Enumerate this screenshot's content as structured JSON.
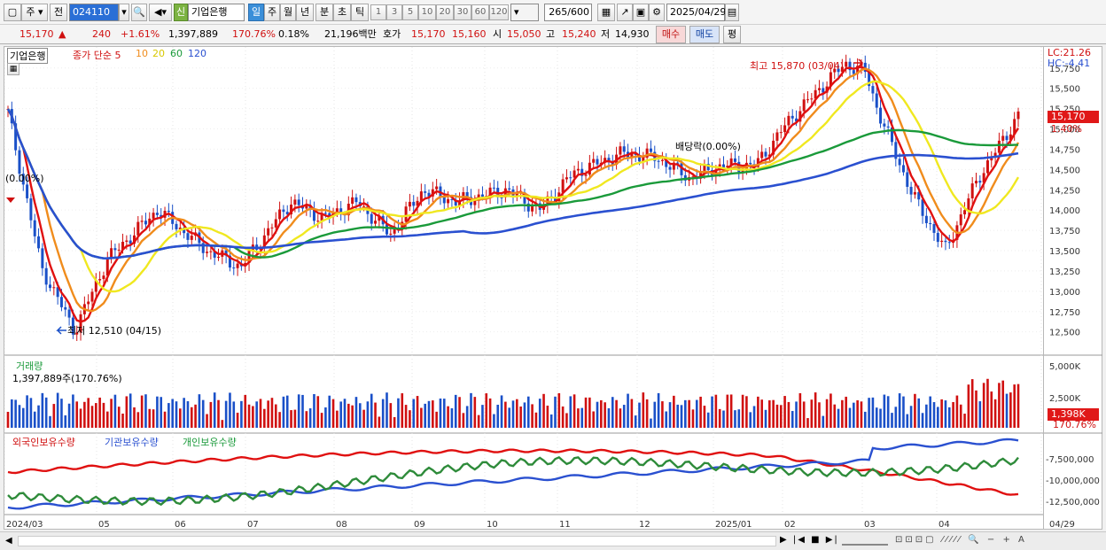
{
  "toolbar": {
    "market": "주",
    "prev_label": "전",
    "code": "024110",
    "credit_badge": "신",
    "stock_name": "기업은행",
    "periods": [
      "일",
      "주",
      "월",
      "년",
      "분",
      "초",
      "틱"
    ],
    "active_period": "일",
    "minutes": [
      "1",
      "3",
      "5",
      "10",
      "20",
      "30",
      "60",
      "120"
    ],
    "count": "265",
    "count_max": "/600",
    "date": "2025/04/29"
  },
  "quote": {
    "price": "15,170",
    "change": "240",
    "change_pct": "+1.61%",
    "volume": "1,397,889",
    "volume_ratio": "170.76%",
    "turnover": "0.18%",
    "amount": "21,196백만",
    "ask_label": "호가",
    "ask1": "15,170",
    "ask2": "15,160",
    "open_label": "시",
    "open": "15,050",
    "high_label": "고",
    "high": "15,240",
    "low_label": "저",
    "low": "14,930",
    "buy_label": "매수",
    "sell_label": "매도",
    "eval_label": "평"
  },
  "price_panel": {
    "name": "기업은행",
    "ma_title": "종가 단순 5",
    "ma_periods": [
      "10",
      "20",
      "60",
      "120"
    ],
    "lc": "LC:21.26",
    "hc": "HC:-4.41",
    "last_price": "15,170",
    "last_pct": "1.40%",
    "high_note": "최고 15,870 (03/04)",
    "low_note": "최저 12,510 (04/15)",
    "ex_dividend": "배당락(0.00%)",
    "left_note": "(0.00%)",
    "y_ticks": [
      "15,750",
      "15,500",
      "15,250",
      "15,000",
      "14,750",
      "14,500",
      "14,250",
      "14,000",
      "13,750",
      "13,500",
      "13,250",
      "13,000",
      "12,750",
      "12,500"
    ]
  },
  "volume_panel": {
    "title": "거래량",
    "value_note": "1,397,889주(170.76%)",
    "y_ticks": [
      "5,000K",
      "2,500K"
    ],
    "last": "1,398K",
    "last_pct": "170.76%"
  },
  "holding_panel": {
    "legend": [
      "외국인보유수량",
      "기관보유수량",
      "개인보유수량"
    ],
    "y_ticks": [
      "-7,500,000",
      "-10,000,000",
      "-12,500,000"
    ]
  },
  "x_ticks": [
    "2024/03",
    "05",
    "06",
    "07",
    "08",
    "09",
    "10",
    "11",
    "12",
    "2025/01",
    "02",
    "03",
    "04",
    "04/29"
  ],
  "colors": {
    "ma5": "#e01010",
    "ma10": "#f08c1c",
    "ma20": "#f0e820",
    "ma60": "#1a9a3a",
    "ma120": "#2a50d0",
    "up": "#d01010",
    "down": "#1a50c8"
  }
}
